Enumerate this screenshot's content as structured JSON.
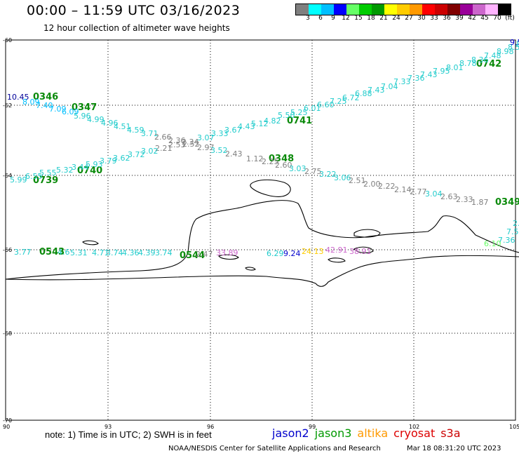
{
  "title": "00:00 – 11:59 UTC 03/16/2023",
  "subtitle": "12 hour collection of altimeter wave heights",
  "colorbar": {
    "colors": [
      "#7f7f7f",
      "#00ffff",
      "#00bfff",
      "#0000ff",
      "#66ff66",
      "#00cc00",
      "#009900",
      "#ffff00",
      "#ffcc00",
      "#ff9900",
      "#ff0000",
      "#cc0000",
      "#800000",
      "#990099",
      "#cc66cc",
      "#ffb3ff",
      "#000000"
    ],
    "labels": [
      "3",
      "6",
      "9",
      "12",
      "15",
      "18",
      "21",
      "24",
      "27",
      "30",
      "33",
      "36",
      "39",
      "42",
      "45",
      "70",
      "(ft)"
    ]
  },
  "axes": {
    "lat_labels": [
      "-60",
      "-62",
      "-64",
      "-66",
      "-68",
      "-70"
    ],
    "lon_labels": [
      "90",
      "93",
      "96",
      "99",
      "102",
      "105"
    ]
  },
  "note": "note:  1) Time is in UTC;  2) SWH is in feet",
  "satellites": [
    {
      "name": "jason2",
      "color": "#0000cc"
    },
    {
      "name": "jason3",
      "color": "#009900"
    },
    {
      "name": "altika",
      "color": "#ff9900"
    },
    {
      "name": "cryosat",
      "color": "#dd0000"
    },
    {
      "name": "s3a",
      "color": "#cc0000"
    }
  ],
  "credit": "NOAA/NESDIS Center for Satellite Applications and Research",
  "credit_time": "Mar 18 08:31:20 UTC 2023",
  "time_labels": [
    "0346",
    "0347",
    "0741",
    "0740",
    "0739",
    "0348",
    "0742",
    "0349",
    "0543",
    "0544"
  ],
  "wave_labels": [
    {
      "t": "10.45",
      "c": "#000099"
    },
    {
      "t": "8.09",
      "c": "#00bfff"
    },
    {
      "t": "7.40",
      "c": "#00bfff"
    },
    {
      "t": "7.09",
      "c": "#00bfff"
    },
    {
      "t": "6.09",
      "c": "#00bfff"
    },
    {
      "t": "5.96",
      "c": "#22cccc"
    },
    {
      "t": "4.99",
      "c": "#22cccc"
    },
    {
      "t": "4.96",
      "c": "#22cccc"
    },
    {
      "t": "4.51",
      "c": "#22cccc"
    },
    {
      "t": "4.59",
      "c": "#22cccc"
    },
    {
      "t": "3.71",
      "c": "#22cccc"
    },
    {
      "t": "2.66",
      "c": "#808080"
    },
    {
      "t": "2.36",
      "c": "#808080"
    },
    {
      "t": "2.34",
      "c": "#808080"
    },
    {
      "t": "2.21",
      "c": "#808080"
    },
    {
      "t": "2.53",
      "c": "#808080"
    },
    {
      "t": "2.52",
      "c": "#808080"
    },
    {
      "t": "2.97",
      "c": "#808080"
    },
    {
      "t": "3.02",
      "c": "#22cccc"
    },
    {
      "t": "3.72",
      "c": "#22cccc"
    },
    {
      "t": "3.62",
      "c": "#22cccc"
    },
    {
      "t": "3.79",
      "c": "#22cccc"
    },
    {
      "t": "5.93",
      "c": "#22cccc"
    },
    {
      "t": "3.44",
      "c": "#22cccc"
    },
    {
      "t": "5.32",
      "c": "#22cccc"
    },
    {
      "t": "5.55",
      "c": "#22cccc"
    },
    {
      "t": "6.55",
      "c": "#22cccc"
    },
    {
      "t": "5.99",
      "c": "#22cccc"
    },
    {
      "t": "3.52",
      "c": "#22cccc"
    },
    {
      "t": "2.43",
      "c": "#808080"
    },
    {
      "t": "1.12",
      "c": "#808080"
    },
    {
      "t": "2.25",
      "c": "#808080"
    },
    {
      "t": "2.60",
      "c": "#808080"
    },
    {
      "t": "3.03",
      "c": "#22cccc"
    },
    {
      "t": "2.75",
      "c": "#808080"
    },
    {
      "t": "3.22",
      "c": "#22cccc"
    },
    {
      "t": "3.06",
      "c": "#22cccc"
    },
    {
      "t": "2.51",
      "c": "#808080"
    },
    {
      "t": "2.00",
      "c": "#808080"
    },
    {
      "t": "2.22",
      "c": "#808080"
    },
    {
      "t": "2.14",
      "c": "#808080"
    },
    {
      "t": "2.77",
      "c": "#808080"
    },
    {
      "t": "3.04",
      "c": "#22cccc"
    },
    {
      "t": "2.63",
      "c": "#808080"
    },
    {
      "t": "2.33",
      "c": "#808080"
    },
    {
      "t": "1.87",
      "c": "#808080"
    },
    {
      "t": "3.07",
      "c": "#22cccc"
    },
    {
      "t": "3.33",
      "c": "#22cccc"
    },
    {
      "t": "3.67",
      "c": "#22cccc"
    },
    {
      "t": "4.43",
      "c": "#22cccc"
    },
    {
      "t": "5.12",
      "c": "#22cccc"
    },
    {
      "t": "4.82",
      "c": "#22cccc"
    },
    {
      "t": "5.50",
      "c": "#22cccc"
    },
    {
      "t": "5.25",
      "c": "#22cccc"
    },
    {
      "t": "6.01",
      "c": "#22cccc"
    },
    {
      "t": "6.60",
      "c": "#22cccc"
    },
    {
      "t": "7.25",
      "c": "#22cccc"
    },
    {
      "t": "6.72",
      "c": "#22cccc"
    },
    {
      "t": "6.88",
      "c": "#22cccc"
    },
    {
      "t": "7.43",
      "c": "#22cccc"
    },
    {
      "t": "7.04",
      "c": "#22cccc"
    },
    {
      "t": "7.33",
      "c": "#22cccc"
    },
    {
      "t": "7.36",
      "c": "#22cccc"
    },
    {
      "t": "7.43",
      "c": "#22cccc"
    },
    {
      "t": "7.95",
      "c": "#22cccc"
    },
    {
      "t": "8.01",
      "c": "#22cccc"
    },
    {
      "t": "8.78",
      "c": "#22cccc"
    },
    {
      "t": "8.36",
      "c": "#22cccc"
    },
    {
      "t": "7.48",
      "c": "#22cccc"
    },
    {
      "t": "8.98",
      "c": "#22cccc"
    },
    {
      "t": "8.58",
      "c": "#22cccc"
    },
    {
      "t": "8.52",
      "c": "#22cccc"
    },
    {
      "t": "9.5",
      "c": "#0000cc"
    },
    {
      "t": "3.77",
      "c": "#22cccc"
    },
    {
      "t": "4.6",
      "c": "#22cccc"
    },
    {
      "t": "5.31",
      "c": "#22cccc"
    },
    {
      "t": "4.71",
      "c": "#22cccc"
    },
    {
      "t": "3.74",
      "c": "#22cccc"
    },
    {
      "t": "4.36",
      "c": "#22cccc"
    },
    {
      "t": "4.39",
      "c": "#22cccc"
    },
    {
      "t": "3.74",
      "c": "#22cccc"
    },
    {
      "t": "2.47",
      "c": "#808080"
    },
    {
      "t": "33.89",
      "c": "#cc66cc"
    },
    {
      "t": "6.29",
      "c": "#22cccc"
    },
    {
      "t": "9.24",
      "c": "#0000cc"
    },
    {
      "t": "24.13",
      "c": "#ffcc00"
    },
    {
      "t": "42.91",
      "c": "#cc66cc"
    },
    {
      "t": "38.91",
      "c": "#cc66cc"
    },
    {
      "t": "2.1",
      "c": "#22cccc"
    },
    {
      "t": "7.5",
      "c": "#22cccc"
    },
    {
      "t": "7.36",
      "c": "#22cccc"
    },
    {
      "t": "6.10",
      "c": "#66ff66"
    }
  ]
}
